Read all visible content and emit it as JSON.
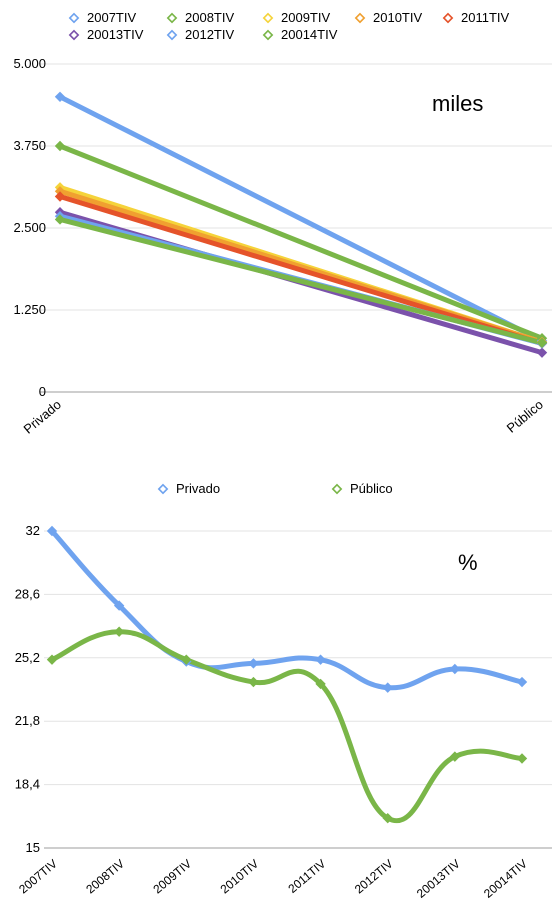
{
  "chart_data": [
    {
      "type": "line",
      "annotation": "miles",
      "categories": [
        "Privado",
        "Público"
      ],
      "ylim": [
        0,
        5000
      ],
      "yticks": [
        "0",
        "1.250",
        "2.500",
        "3.750",
        "5.000"
      ],
      "ytick_values": [
        0,
        1250,
        2500,
        3750,
        5000
      ],
      "grid": true,
      "legend_position": "top",
      "series": [
        {
          "name": "2007TIV",
          "color": "#6fa3ef",
          "values": [
            4500,
            780
          ]
        },
        {
          "name": "2008TIV",
          "color": "#7ab648",
          "values": [
            3750,
            820
          ]
        },
        {
          "name": "2009TIV",
          "color": "#f5d33a",
          "values": [
            3120,
            760
          ]
        },
        {
          "name": "2010TIV",
          "color": "#f0a030",
          "values": [
            3060,
            760
          ]
        },
        {
          "name": "2011TIV",
          "color": "#e5532a",
          "values": [
            2980,
            740
          ]
        },
        {
          "name": "20013TIV",
          "color": "#7b52ab",
          "values": [
            2740,
            600
          ]
        },
        {
          "name": "2012TIV",
          "color": "#6fa3ef",
          "values": [
            2680,
            740
          ]
        },
        {
          "name": "20014TIV",
          "color": "#7ab648",
          "values": [
            2630,
            750
          ]
        }
      ]
    },
    {
      "type": "line",
      "annotation": "%",
      "categories": [
        "2007TIV",
        "2008TIV",
        "2009TIV",
        "2010TIV",
        "2011TIV",
        "2012TIV",
        "20013TIV",
        "20014TIV"
      ],
      "ylim": [
        15,
        32
      ],
      "yticks": [
        "15",
        "18,4",
        "21,8",
        "25,2",
        "28,6",
        "32"
      ],
      "ytick_values": [
        15,
        18.4,
        21.8,
        25.2,
        28.6,
        32
      ],
      "grid": true,
      "legend_position": "top",
      "series": [
        {
          "name": "Privado",
          "color": "#6fa3ef",
          "values": [
            32.0,
            28.0,
            25.0,
            24.9,
            25.1,
            23.6,
            24.6,
            23.9
          ]
        },
        {
          "name": "Público",
          "color": "#7ab648",
          "values": [
            25.1,
            26.6,
            25.1,
            23.9,
            23.8,
            16.6,
            19.9,
            19.8
          ]
        }
      ]
    }
  ]
}
